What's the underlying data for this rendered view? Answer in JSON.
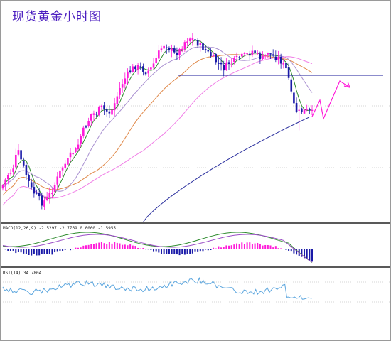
{
  "title": "现货黄金小时图",
  "colors": {
    "bull": "#ff1ad9",
    "bear": "#1a1aa8",
    "ma_fast": "#2e8b2e",
    "ma_mid": "#a88fd0",
    "ma_slow": "#e0894a",
    "ma_long": "#f07ee6",
    "ma_very_long": "#2a2f9e",
    "macd_line": "#2e8b2e",
    "macd_signal": "#9b4fc6",
    "rsi": "#5aa5de",
    "resistance": "#1a1a9a",
    "projection": "#ff1ad9",
    "separator": "#595959"
  },
  "chart_data": [
    {
      "type": "candlestick",
      "panel": "price",
      "grid": true,
      "bars_down": [
        10,
        9,
        12,
        8,
        14,
        11,
        9,
        15,
        12,
        18
      ],
      "price_path": [
        260,
        245,
        238,
        210,
        230,
        250,
        268,
        275,
        285,
        278,
        268,
        252,
        235,
        228,
        215,
        210,
        188,
        175,
        160,
        158,
        150,
        155,
        158,
        140,
        120,
        108,
        98,
        92,
        95,
        100,
        98,
        85,
        70,
        60,
        68,
        75,
        70,
        58,
        52,
        55,
        62,
        68,
        75,
        82,
        90,
        95,
        88,
        85,
        80,
        78,
        75,
        70,
        78,
        82,
        72,
        78,
        80,
        88,
        100,
        142,
        158,
        155,
        155,
        158
      ],
      "horizontal_line": 105,
      "projection": [
        [
          438,
          163
        ],
        [
          449,
          140
        ],
        [
          454,
          166
        ],
        [
          477,
          113
        ],
        [
          491,
          122
        ]
      ],
      "moving_averages": [
        "ma_fast",
        "ma_mid",
        "ma_slow",
        "ma_long",
        "ma_very_long"
      ]
    },
    {
      "type": "bar",
      "panel": "MACD",
      "label": "MACD(12,26,9) -2.5297 -2.7769 0.0000 -1.5955",
      "series": [
        "histogram",
        "macd_line",
        "signal_line"
      ]
    },
    {
      "type": "line",
      "panel": "RSI",
      "label": "RSI(14) 34.7804",
      "ylim": [
        0,
        100
      ],
      "levels": [
        30,
        70
      ]
    }
  ]
}
